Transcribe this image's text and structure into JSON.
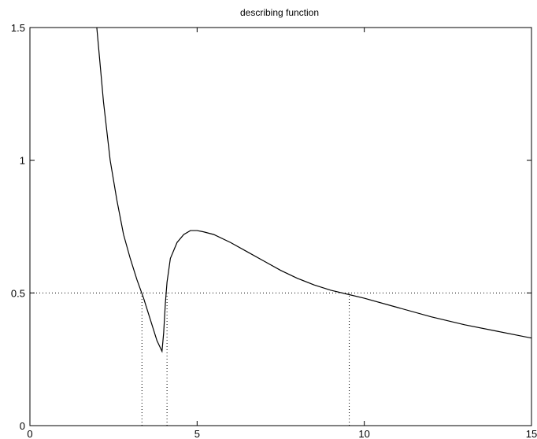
{
  "chart_data": {
    "type": "line",
    "title": "describing function",
    "xlabel": "",
    "ylabel": "",
    "xlim": [
      0,
      15
    ],
    "ylim": [
      0,
      1.5
    ],
    "x_ticks": [
      0,
      5,
      10,
      15
    ],
    "x_tick_labels": [
      "0",
      "5",
      "10",
      "15"
    ],
    "y_ticks": [
      0,
      0.5,
      1,
      1.5
    ],
    "y_tick_labels": [
      "0",
      "0.5",
      "1",
      "1.5"
    ],
    "grid": false,
    "series": [
      {
        "name": "",
        "color": "#000000",
        "style": "solid",
        "x": [
          2.0,
          2.2,
          2.4,
          2.6,
          2.8,
          3.0,
          3.2,
          3.4,
          3.6,
          3.8,
          3.95,
          4.0,
          4.05,
          4.1,
          4.2,
          4.4,
          4.6,
          4.8,
          5.0,
          5.2,
          5.5,
          6.0,
          6.5,
          7.0,
          7.5,
          8.0,
          8.5,
          9.0,
          9.5,
          10.0,
          11.0,
          12.0,
          13.0,
          14.0,
          15.0
        ],
        "y": [
          1.5,
          1.22,
          1.0,
          0.85,
          0.72,
          0.63,
          0.55,
          0.48,
          0.4,
          0.32,
          0.28,
          0.35,
          0.46,
          0.54,
          0.63,
          0.69,
          0.72,
          0.735,
          0.735,
          0.73,
          0.72,
          0.69,
          0.655,
          0.62,
          0.585,
          0.555,
          0.53,
          0.51,
          0.495,
          0.48,
          0.445,
          0.41,
          0.38,
          0.355,
          0.33
        ]
      }
    ],
    "reference_lines": [
      {
        "type": "horizontal",
        "y": 0.5,
        "style": "dotted"
      },
      {
        "type": "vertical",
        "x": 3.35,
        "y_top": 0.5,
        "style": "dotted"
      },
      {
        "type": "vertical",
        "x": 4.1,
        "y_top": 0.5,
        "style": "dotted"
      },
      {
        "type": "vertical",
        "x": 9.55,
        "y_top": 0.5,
        "style": "dotted"
      }
    ]
  }
}
